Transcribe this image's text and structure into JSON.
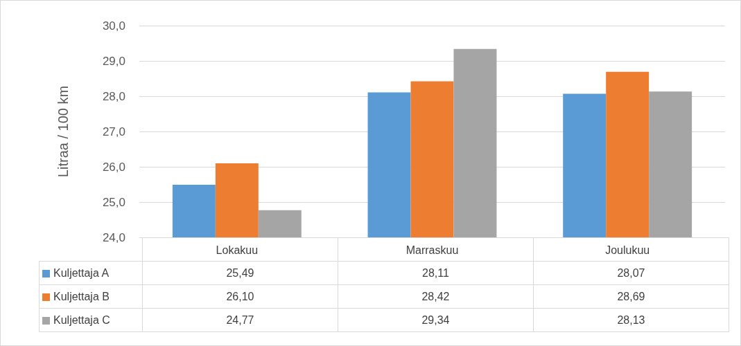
{
  "chart_data": {
    "type": "bar",
    "ylabel": "Litraa / 100 km",
    "categories": [
      "Lokakuu",
      "Marraskuu",
      "Joulukuu"
    ],
    "series": [
      {
        "name": "Kuljettaja A",
        "color": "#5b9bd5",
        "values": [
          25.49,
          28.11,
          28.07
        ],
        "value_labels": [
          "25,49",
          "28,11",
          "28,07"
        ]
      },
      {
        "name": "Kuljettaja B",
        "color": "#ed7d31",
        "values": [
          26.1,
          28.42,
          28.69
        ],
        "value_labels": [
          "26,10",
          "28,42",
          "28,69"
        ]
      },
      {
        "name": "Kuljettaja C",
        "color": "#a5a5a5",
        "values": [
          24.77,
          29.34,
          28.13
        ],
        "value_labels": [
          "24,77",
          "29,34",
          "28,13"
        ]
      }
    ],
    "ylim": [
      24,
      30
    ],
    "yticks": [
      {
        "value": 24,
        "label": "24,0"
      },
      {
        "value": 25,
        "label": "25,0"
      },
      {
        "value": 26,
        "label": "26,0"
      },
      {
        "value": 27,
        "label": "27,0"
      },
      {
        "value": 28,
        "label": "28,0"
      },
      {
        "value": 29,
        "label": "29,0"
      },
      {
        "value": 30,
        "label": "30,0"
      }
    ],
    "grid": "y",
    "legend": "bottom left"
  }
}
